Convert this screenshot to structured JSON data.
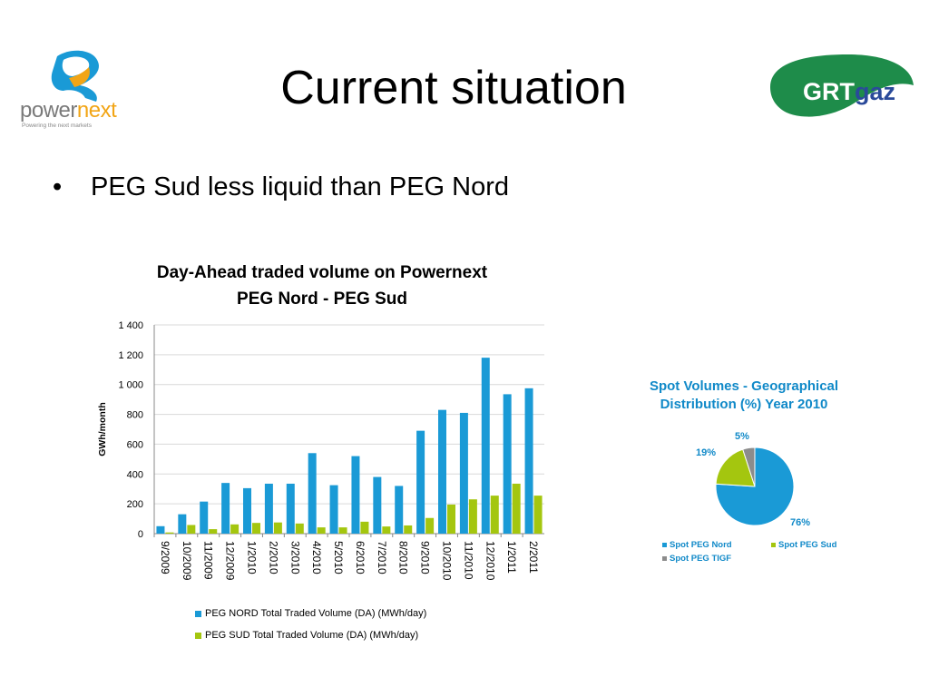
{
  "slide": {
    "title": "Current situation",
    "bullets": [
      "PEG Sud less liquid than PEG Nord"
    ]
  },
  "logos": {
    "left": {
      "text_prefix": "power",
      "text_suffix": "next",
      "tagline": "Powering the next markets"
    },
    "right": {
      "text_prefix": "GRT",
      "text_suffix": "gaz"
    }
  },
  "colors": {
    "nord": "#1a9ad6",
    "sud": "#a4c60f",
    "tigf": "#8c8c8c",
    "accent_blue": "#1089c8",
    "grtgaz_green": "#1e8c4a"
  },
  "chart_data": [
    {
      "type": "bar",
      "title": "Day-Ahead traded volume on Powernext\nPEG Nord - PEG Sud",
      "title_lines": [
        "Day-Ahead traded volume on Powernext",
        "PEG Nord - PEG Sud"
      ],
      "ylabel": "GWh/month",
      "xlabel": "",
      "ylim": [
        0,
        1400
      ],
      "yticks": [
        "0",
        "200",
        "400",
        "600",
        "800",
        "1 000",
        "1 200",
        "1 400"
      ],
      "grid": true,
      "legend_position": "bottom",
      "categories": [
        "9/2009",
        "10/2009",
        "11/2009",
        "12/2009",
        "1/2010",
        "2/2010",
        "3/2010",
        "4/2010",
        "5/2010",
        "6/2010",
        "7/2010",
        "8/2010",
        "9/2010",
        "10/2010",
        "11/2010",
        "12/2010",
        "1/2011",
        "2/2011"
      ],
      "series": [
        {
          "name": "PEG NORD Total Traded Volume (DA) (MWh/day)",
          "color": "#1a9ad6",
          "values": [
            50,
            130,
            215,
            340,
            305,
            335,
            335,
            540,
            325,
            520,
            380,
            320,
            690,
            830,
            810,
            1180,
            935,
            975
          ]
        },
        {
          "name": "PEG SUD Total Traded Volume (DA) (MWh/day)",
          "color": "#a4c60f",
          "values": [
            8,
            58,
            30,
            62,
            72,
            75,
            68,
            42,
            42,
            80,
            48,
            55,
            105,
            195,
            230,
            255,
            335,
            255
          ]
        }
      ]
    },
    {
      "type": "pie",
      "title": "Spot Volumes - Geographical Distribution (%) Year 2010",
      "title_lines": [
        "Spot Volumes - Geographical",
        "Distribution (%) Year 2010"
      ],
      "legend_position": "bottom",
      "slices": [
        {
          "name": "Spot PEG Nord",
          "value": 76,
          "label": "76%",
          "color": "#1a9ad6"
        },
        {
          "name": "Spot PEG Sud",
          "value": 19,
          "label": "19%",
          "color": "#a4c60f"
        },
        {
          "name": "Spot PEG TIGF",
          "value": 5,
          "label": "5%",
          "color": "#8c8c8c"
        }
      ]
    }
  ]
}
